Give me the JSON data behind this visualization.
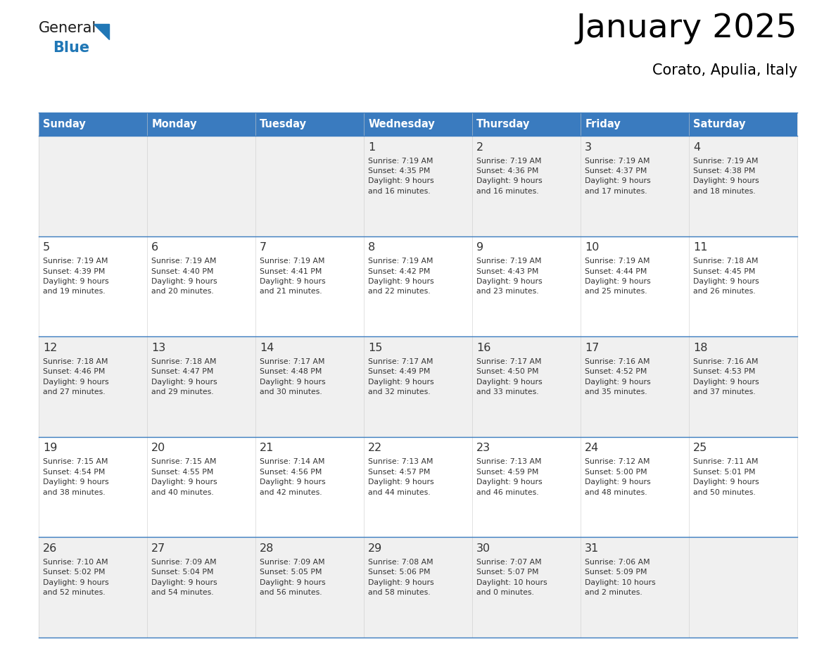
{
  "title": "January 2025",
  "subtitle": "Corato, Apulia, Italy",
  "header_bg": "#3a7bbf",
  "header_text_color": "#ffffff",
  "cell_bg_odd": "#f0f0f0",
  "cell_bg_even": "#ffffff",
  "border_color": "#3a7bbf",
  "text_color": "#333333",
  "days_of_week": [
    "Sunday",
    "Monday",
    "Tuesday",
    "Wednesday",
    "Thursday",
    "Friday",
    "Saturday"
  ],
  "weeks": [
    [
      {
        "day": "",
        "info": ""
      },
      {
        "day": "",
        "info": ""
      },
      {
        "day": "",
        "info": ""
      },
      {
        "day": "1",
        "info": "Sunrise: 7:19 AM\nSunset: 4:35 PM\nDaylight: 9 hours\nand 16 minutes."
      },
      {
        "day": "2",
        "info": "Sunrise: 7:19 AM\nSunset: 4:36 PM\nDaylight: 9 hours\nand 16 minutes."
      },
      {
        "day": "3",
        "info": "Sunrise: 7:19 AM\nSunset: 4:37 PM\nDaylight: 9 hours\nand 17 minutes."
      },
      {
        "day": "4",
        "info": "Sunrise: 7:19 AM\nSunset: 4:38 PM\nDaylight: 9 hours\nand 18 minutes."
      }
    ],
    [
      {
        "day": "5",
        "info": "Sunrise: 7:19 AM\nSunset: 4:39 PM\nDaylight: 9 hours\nand 19 minutes."
      },
      {
        "day": "6",
        "info": "Sunrise: 7:19 AM\nSunset: 4:40 PM\nDaylight: 9 hours\nand 20 minutes."
      },
      {
        "day": "7",
        "info": "Sunrise: 7:19 AM\nSunset: 4:41 PM\nDaylight: 9 hours\nand 21 minutes."
      },
      {
        "day": "8",
        "info": "Sunrise: 7:19 AM\nSunset: 4:42 PM\nDaylight: 9 hours\nand 22 minutes."
      },
      {
        "day": "9",
        "info": "Sunrise: 7:19 AM\nSunset: 4:43 PM\nDaylight: 9 hours\nand 23 minutes."
      },
      {
        "day": "10",
        "info": "Sunrise: 7:19 AM\nSunset: 4:44 PM\nDaylight: 9 hours\nand 25 minutes."
      },
      {
        "day": "11",
        "info": "Sunrise: 7:18 AM\nSunset: 4:45 PM\nDaylight: 9 hours\nand 26 minutes."
      }
    ],
    [
      {
        "day": "12",
        "info": "Sunrise: 7:18 AM\nSunset: 4:46 PM\nDaylight: 9 hours\nand 27 minutes."
      },
      {
        "day": "13",
        "info": "Sunrise: 7:18 AM\nSunset: 4:47 PM\nDaylight: 9 hours\nand 29 minutes."
      },
      {
        "day": "14",
        "info": "Sunrise: 7:17 AM\nSunset: 4:48 PM\nDaylight: 9 hours\nand 30 minutes."
      },
      {
        "day": "15",
        "info": "Sunrise: 7:17 AM\nSunset: 4:49 PM\nDaylight: 9 hours\nand 32 minutes."
      },
      {
        "day": "16",
        "info": "Sunrise: 7:17 AM\nSunset: 4:50 PM\nDaylight: 9 hours\nand 33 minutes."
      },
      {
        "day": "17",
        "info": "Sunrise: 7:16 AM\nSunset: 4:52 PM\nDaylight: 9 hours\nand 35 minutes."
      },
      {
        "day": "18",
        "info": "Sunrise: 7:16 AM\nSunset: 4:53 PM\nDaylight: 9 hours\nand 37 minutes."
      }
    ],
    [
      {
        "day": "19",
        "info": "Sunrise: 7:15 AM\nSunset: 4:54 PM\nDaylight: 9 hours\nand 38 minutes."
      },
      {
        "day": "20",
        "info": "Sunrise: 7:15 AM\nSunset: 4:55 PM\nDaylight: 9 hours\nand 40 minutes."
      },
      {
        "day": "21",
        "info": "Sunrise: 7:14 AM\nSunset: 4:56 PM\nDaylight: 9 hours\nand 42 minutes."
      },
      {
        "day": "22",
        "info": "Sunrise: 7:13 AM\nSunset: 4:57 PM\nDaylight: 9 hours\nand 44 minutes."
      },
      {
        "day": "23",
        "info": "Sunrise: 7:13 AM\nSunset: 4:59 PM\nDaylight: 9 hours\nand 46 minutes."
      },
      {
        "day": "24",
        "info": "Sunrise: 7:12 AM\nSunset: 5:00 PM\nDaylight: 9 hours\nand 48 minutes."
      },
      {
        "day": "25",
        "info": "Sunrise: 7:11 AM\nSunset: 5:01 PM\nDaylight: 9 hours\nand 50 minutes."
      }
    ],
    [
      {
        "day": "26",
        "info": "Sunrise: 7:10 AM\nSunset: 5:02 PM\nDaylight: 9 hours\nand 52 minutes."
      },
      {
        "day": "27",
        "info": "Sunrise: 7:09 AM\nSunset: 5:04 PM\nDaylight: 9 hours\nand 54 minutes."
      },
      {
        "day": "28",
        "info": "Sunrise: 7:09 AM\nSunset: 5:05 PM\nDaylight: 9 hours\nand 56 minutes."
      },
      {
        "day": "29",
        "info": "Sunrise: 7:08 AM\nSunset: 5:06 PM\nDaylight: 9 hours\nand 58 minutes."
      },
      {
        "day": "30",
        "info": "Sunrise: 7:07 AM\nSunset: 5:07 PM\nDaylight: 10 hours\nand 0 minutes."
      },
      {
        "day": "31",
        "info": "Sunrise: 7:06 AM\nSunset: 5:09 PM\nDaylight: 10 hours\nand 2 minutes."
      },
      {
        "day": "",
        "info": ""
      }
    ]
  ],
  "logo_text_general": "General",
  "logo_text_blue": "Blue",
  "logo_blue": "#2077b6",
  "logo_dark": "#1a1a1a"
}
